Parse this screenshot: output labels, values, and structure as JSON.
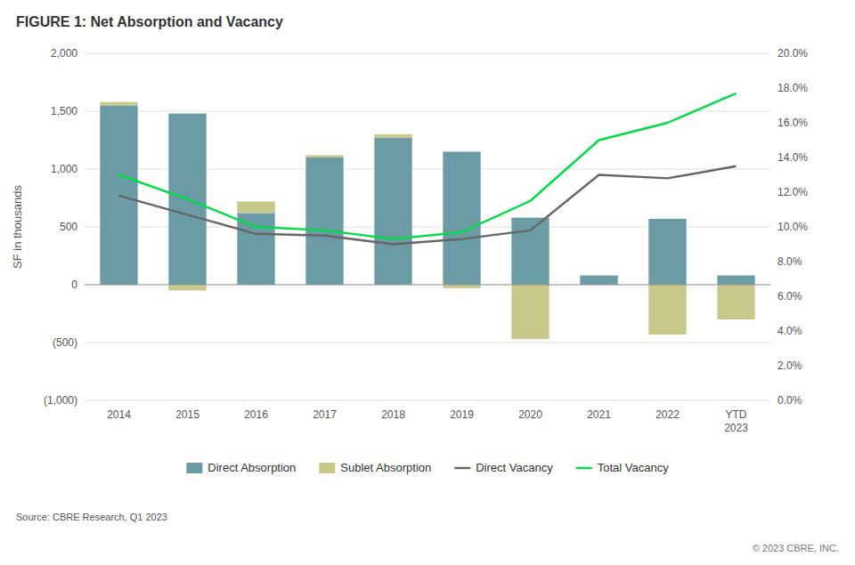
{
  "chart_data": {
    "type": "bar",
    "title": "FIGURE 1: Net Absorption and Vacancy",
    "y_label": "SF in thousands",
    "annotations": [
      "Source: CBRE Research, Q1 2023",
      "© 2023 CBRE, INC."
    ],
    "categories": [
      "2014",
      "2015",
      "2016",
      "2017",
      "2018",
      "2019",
      "2020",
      "2021",
      "2022",
      "YTD\n2023"
    ],
    "stacked": true,
    "grid": true,
    "legend": "bottom",
    "series": [
      {
        "name": "Direct Absorption",
        "type": "bar",
        "color": "#6b9ba4",
        "values": [
          1550,
          1480,
          620,
          1100,
          1270,
          1150,
          580,
          80,
          570,
          80
        ]
      },
      {
        "name": "Sublet Absorption",
        "type": "bar",
        "color": "#c8c88a",
        "values": [
          30,
          -50,
          100,
          20,
          30,
          -30,
          -470,
          0,
          -430,
          -300
        ]
      },
      {
        "name": "Direct Vacancy",
        "type": "line",
        "axis": "y2",
        "color": "#666666",
        "values": [
          0.118,
          0.107,
          0.096,
          0.095,
          0.09,
          0.093,
          0.098,
          0.13,
          0.128,
          0.135
        ]
      },
      {
        "name": "Total Vacancy",
        "type": "line",
        "axis": "y2",
        "color": "#00dd44",
        "values": [
          0.13,
          0.116,
          0.1,
          0.098,
          0.093,
          0.097,
          0.115,
          0.15,
          0.16,
          0.177
        ]
      }
    ],
    "ylim": [
      -1000,
      2000
    ],
    "yticks": [
      {
        "value": -1000,
        "label": "(1,000)"
      },
      {
        "value": -500,
        "label": "(500)"
      },
      0,
      500,
      {
        "value": 1000,
        "label": "1,000"
      },
      {
        "value": 1500,
        "label": "1,500"
      },
      {
        "value": 2000,
        "label": "2,000"
      }
    ],
    "y2lim": [
      0.0,
      0.2
    ],
    "y2ticks": [
      {
        "value": 0.0,
        "label": "0.0%"
      },
      {
        "value": 0.02,
        "label": "2.0%"
      },
      {
        "value": 0.04,
        "label": "4.0%"
      },
      {
        "value": 0.06,
        "label": "6.0%"
      },
      {
        "value": 0.08,
        "label": "8.0%"
      },
      {
        "value": 0.1,
        "label": "10.0%"
      },
      {
        "value": 0.12,
        "label": "12.0%"
      },
      {
        "value": 0.14,
        "label": "14.0%"
      },
      {
        "value": 0.16,
        "label": "16.0%"
      },
      {
        "value": 0.18,
        "label": "18.0%"
      },
      {
        "value": 0.2,
        "label": "20.0%"
      }
    ]
  }
}
